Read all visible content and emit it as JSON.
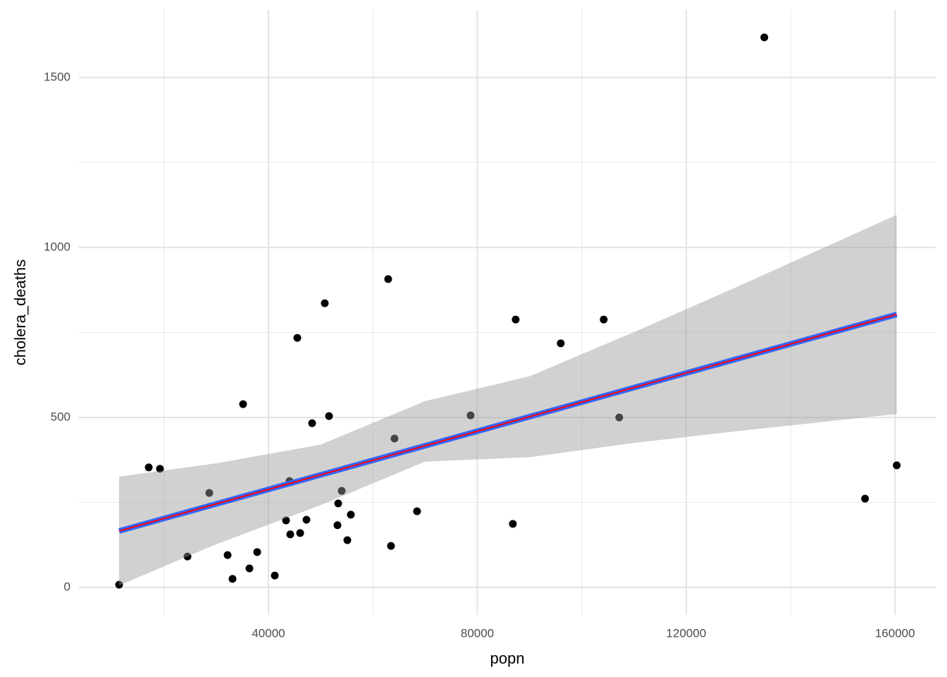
{
  "chart_data": {
    "type": "scatter",
    "x_label": "popn",
    "y_label": "cholera_deaths",
    "x": [
      11400,
      17070,
      19220,
      24490,
      28670,
      32180,
      33120,
      35140,
      36360,
      37840,
      41210,
      43370,
      44040,
      44180,
      45530,
      46070,
      47280,
      48360,
      50790,
      51600,
      53220,
      53360,
      54030,
      55110,
      55780,
      62930,
      63470,
      64140,
      68460,
      78710,
      86810,
      87350,
      95980,
      104210,
      107180,
      134970,
      154260,
      160330
    ],
    "values": [
      8,
      353,
      349,
      91,
      278,
      95,
      25,
      539,
      56,
      104,
      35,
      197,
      313,
      156,
      734,
      160,
      199,
      483,
      836,
      504,
      183,
      247,
      284,
      139,
      214,
      907,
      122,
      438,
      224,
      506,
      187,
      788,
      718,
      788,
      500,
      1618,
      261,
      359
    ],
    "color": "#000000",
    "fit": {
      "x": [
        11400,
        160330
      ],
      "values": [
        166,
        803
      ],
      "color": "#3366ff",
      "inner_color": "#ff0000"
    },
    "band": {
      "x": [
        11400,
        30000,
        50000,
        70000,
        90000,
        110000,
        130000,
        160330
      ],
      "upper": [
        326,
        365,
        420,
        548,
        621,
        751,
        886,
        1096
      ],
      "lower": [
        6,
        127,
        242,
        370,
        383,
        425,
        460,
        510
      ],
      "color": "#999999"
    },
    "xlim": [
      3700,
      167800
    ],
    "ylim": [
      -81,
      1699
    ],
    "xticks": [
      40000,
      80000,
      120000,
      160000
    ],
    "yticks": [
      0,
      500,
      1000,
      1500
    ],
    "x_minor_ticks": [
      20000,
      60000,
      100000,
      140000
    ],
    "y_minor_ticks": [
      250,
      750,
      1250
    ],
    "grid": true
  }
}
